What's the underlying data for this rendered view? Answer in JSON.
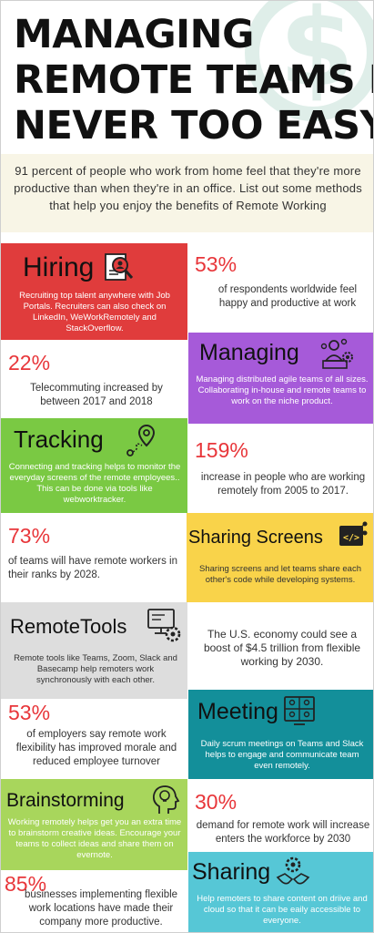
{
  "title": {
    "line1": "MANAGING",
    "line2": "REMOTE TEAMS IS",
    "line3": "NEVER TOO EASY"
  },
  "intro": "91 percent of people who work from home feel that they're more productive than when they're in an office. List out some methods that help you enjoy the benefits of Remote Working",
  "cards": {
    "hiring": {
      "heading": "Hiring",
      "text": "Recruiting top talent anywhere with Job Portals. Recruiters can also check on LinkedIn, WeWorkRemotely and StackOverflow.",
      "color": "#e03c3c",
      "icon": "resume-search-icon"
    },
    "managing": {
      "heading": "Managing",
      "text": "Managing distributed agile teams of all sizes. Collaborating in-house and remote teams to work on the niche product.",
      "color": "#a65ad9",
      "icon": "manager-gear-icon"
    },
    "tracking": {
      "heading": "Tracking",
      "text": "Connecting and tracking helps to monitor the everyday screens of the remote employees.. This can be done via tools like webworktracker.",
      "color": "#7ac943",
      "icon": "route-pin-icon"
    },
    "sharing_screens": {
      "heading": "Sharing Screens",
      "text": "Sharing screens and let teams share each other's code while developing systems.",
      "color": "#f9d34a",
      "icon": "code-share-icon"
    },
    "remotetools": {
      "heading": "RemoteTools",
      "text": "Remote tools like Teams, Zoom, Slack and Basecamp help remoters work synchronously with each other.",
      "color": "#dddddd",
      "icon": "monitor-gear-icon"
    },
    "meeting": {
      "heading": "Meeting",
      "text": "Daily scrum meetings on Teams and Slack helps to engage and communicate team even remotely.",
      "color": "#138f9a",
      "icon": "video-meeting-icon"
    },
    "brainstorming": {
      "heading": "Brainstorming",
      "text": "Working remotely helps get you an extra time to brainstorm creative ideas. Encourage your teams to collect ideas and share them on evernote.",
      "color": "#a8d65c",
      "icon": "head-bulb-icon"
    },
    "sharing": {
      "heading": "Sharing",
      "text": "Help remoters to share content on driive and cloud so that it can be eaily accessible to everyone.",
      "color": "#56c7d6",
      "icon": "handshake-gear-icon"
    }
  },
  "stats": {
    "s53a": {
      "num": "53%",
      "text": "of respondents worldwide feel happy and productive at work"
    },
    "s22": {
      "num": "22%",
      "text": "Telecommuting increased by between 2017 and 2018"
    },
    "s159": {
      "num": "159%",
      "text": "increase in people who are working remotely from 2005 to 2017."
    },
    "s73": {
      "num": "73%",
      "text": "of teams will have remote workers in their ranks by 2028."
    },
    "economy": {
      "text": "The U.S. economy could see a boost of $4.5 trillion from flexible working by 2030."
    },
    "s53b": {
      "num": "53%",
      "text": "of employers say remote work flexibility has improved morale and reduced employee turnover"
    },
    "s30": {
      "num": "30%",
      "text": "demand for remote work will increase enters the workforce by 2030"
    },
    "s85": {
      "num": "85%",
      "text": "businesses implementing flexible work locations have made their company more productive."
    }
  },
  "colors": {
    "stat_number": "#e8363a",
    "intro_bg": "#f8f5e6",
    "decoration": "#dfeee9"
  }
}
